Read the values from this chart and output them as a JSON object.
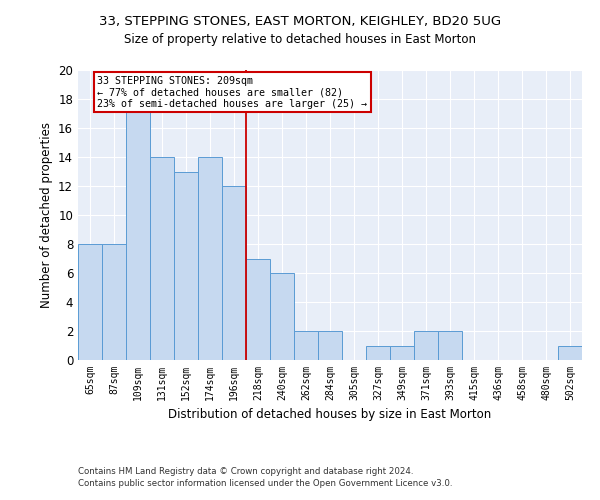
{
  "title_line1": "33, STEPPING STONES, EAST MORTON, KEIGHLEY, BD20 5UG",
  "title_line2": "Size of property relative to detached houses in East Morton",
  "xlabel": "Distribution of detached houses by size in East Morton",
  "ylabel": "Number of detached properties",
  "categories": [
    "65sqm",
    "87sqm",
    "109sqm",
    "131sqm",
    "152sqm",
    "174sqm",
    "196sqm",
    "218sqm",
    "240sqm",
    "262sqm",
    "284sqm",
    "305sqm",
    "327sqm",
    "349sqm",
    "371sqm",
    "393sqm",
    "415sqm",
    "436sqm",
    "458sqm",
    "480sqm",
    "502sqm"
  ],
  "values": [
    8,
    8,
    18,
    14,
    13,
    14,
    12,
    7,
    6,
    2,
    2,
    0,
    1,
    1,
    2,
    2,
    0,
    0,
    0,
    0,
    1
  ],
  "bar_color": "#c6d9f0",
  "bar_edge_color": "#5a9bd4",
  "vline_x": 6.5,
  "vline_color": "#cc0000",
  "annotation_line1": "33 STEPPING STONES: 209sqm",
  "annotation_line2": "← 77% of detached houses are smaller (82)",
  "annotation_line3": "23% of semi-detached houses are larger (25) →",
  "annotation_box_color": "#cc0000",
  "ylim": [
    0,
    20
  ],
  "yticks": [
    0,
    2,
    4,
    6,
    8,
    10,
    12,
    14,
    16,
    18,
    20
  ],
  "footnote1": "Contains HM Land Registry data © Crown copyright and database right 2024.",
  "footnote2": "Contains public sector information licensed under the Open Government Licence v3.0.",
  "plot_bg_color": "#e8eef8"
}
